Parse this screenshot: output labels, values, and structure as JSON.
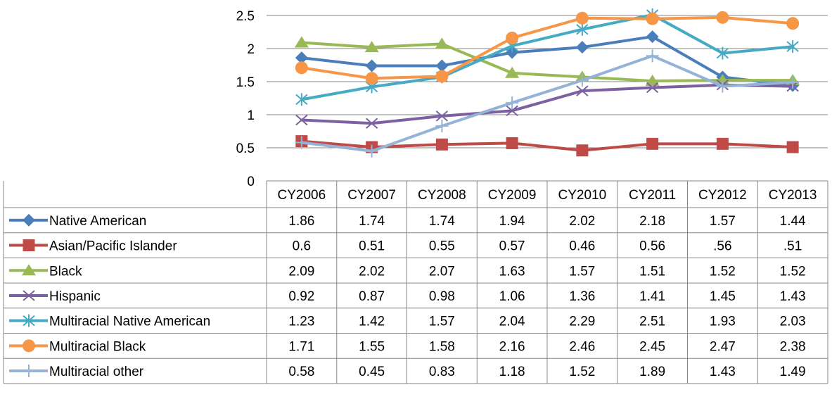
{
  "chart_data": {
    "type": "line",
    "title": "",
    "xlabel": "",
    "ylabel": "",
    "ylim": [
      0,
      2.5
    ],
    "y_ticks": [
      "0",
      "0.5",
      "1",
      "1.5",
      "2",
      "2.5"
    ],
    "grid": true,
    "legend": "data-table",
    "categories": [
      "CY2006",
      "CY2007",
      "CY2008",
      "CY2009",
      "CY2010",
      "CY2011",
      "CY2012",
      "CY2013"
    ],
    "series": [
      {
        "name": "Native American",
        "color": "#4a7ebb",
        "marker": "diamond",
        "values": [
          1.86,
          1.74,
          1.74,
          1.94,
          2.02,
          2.18,
          1.57,
          1.44
        ],
        "cell_labels": [
          "1.86",
          "1.74",
          "1.74",
          "1.94",
          "2.02",
          "2.18",
          "1.57",
          "1.44"
        ]
      },
      {
        "name": "Asian/Pacific Islander",
        "color": "#be4b48",
        "marker": "square",
        "values": [
          0.6,
          0.51,
          0.55,
          0.57,
          0.46,
          0.56,
          0.56,
          0.51
        ],
        "cell_labels": [
          "0.6",
          "0.51",
          "0.55",
          "0.57",
          "0.46",
          "0.56",
          ".56",
          ".51"
        ]
      },
      {
        "name": "Black",
        "color": "#98b954",
        "marker": "triangle",
        "values": [
          2.09,
          2.02,
          2.07,
          1.63,
          1.57,
          1.51,
          1.52,
          1.52
        ],
        "cell_labels": [
          "2.09",
          "2.02",
          "2.07",
          "1.63",
          "1.57",
          "1.51",
          "1.52",
          "1.52"
        ]
      },
      {
        "name": "Hispanic",
        "color": "#7d60a0",
        "marker": "x",
        "values": [
          0.92,
          0.87,
          0.98,
          1.06,
          1.36,
          1.41,
          1.45,
          1.43
        ],
        "cell_labels": [
          "0.92",
          "0.87",
          "0.98",
          "1.06",
          "1.36",
          "1.41",
          "1.45",
          "1.43"
        ]
      },
      {
        "name": "Multiracial Native American",
        "color": "#46aac5",
        "marker": "star",
        "values": [
          1.23,
          1.42,
          1.57,
          2.04,
          2.29,
          2.51,
          1.93,
          2.03
        ],
        "cell_labels": [
          "1.23",
          "1.42",
          "1.57",
          "2.04",
          "2.29",
          "2.51",
          "1.93",
          "2.03"
        ]
      },
      {
        "name": "Multiracial Black",
        "color": "#f79646",
        "marker": "circle",
        "values": [
          1.71,
          1.55,
          1.58,
          2.16,
          2.46,
          2.45,
          2.47,
          2.38
        ],
        "cell_labels": [
          "1.71",
          "1.55",
          "1.58",
          "2.16",
          "2.46",
          "2.45",
          "2.47",
          "2.38"
        ]
      },
      {
        "name": "Multiracial other",
        "color": "#95b3d7",
        "marker": "plus",
        "values": [
          0.58,
          0.45,
          0.83,
          1.18,
          1.52,
          1.89,
          1.43,
          1.49
        ],
        "cell_labels": [
          "0.58",
          "0.45",
          "0.83",
          "1.18",
          "1.52",
          "1.89",
          "1.43",
          "1.49"
        ]
      }
    ]
  }
}
